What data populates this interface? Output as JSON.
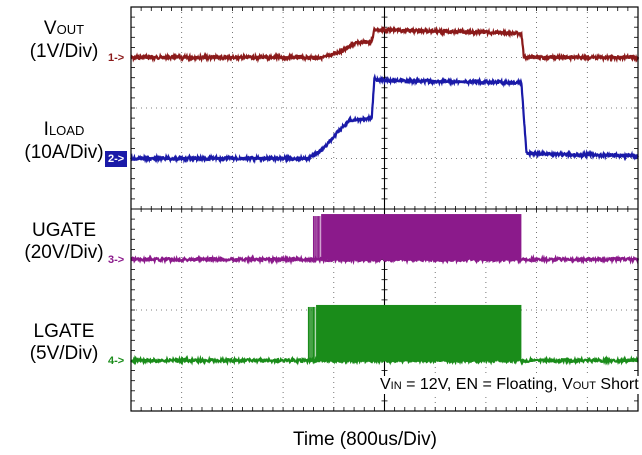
{
  "chart_data": {
    "type": "line",
    "title": "",
    "xlabel": "Time (800us/Div)",
    "x_divisions": 10,
    "y_divisions": 8,
    "grid": true,
    "annotation": {
      "parts": [
        {
          "text": "V",
          "style": "normal"
        },
        {
          "text": "IN",
          "style": "sub"
        },
        {
          "text": " = 12V, EN = Floating, V",
          "style": "normal"
        },
        {
          "text": "OUT",
          "style": "sub"
        },
        {
          "text": " Short",
          "style": "normal"
        }
      ]
    },
    "channels": [
      {
        "marker": "1->",
        "name_main": "V",
        "name_sub": "OUT",
        "scale": "(1V/Div)",
        "color": "#8b1a1a",
        "marker_boxed": false,
        "baseline_div": 7.0,
        "waveform": [
          {
            "t": 0.0,
            "level": 0.0
          },
          {
            "t": 3.8,
            "level": 0.0
          },
          {
            "t": 4.2,
            "level": 0.15
          },
          {
            "t": 4.4,
            "level": 0.28
          },
          {
            "t": 4.75,
            "level": 0.32
          },
          {
            "t": 4.8,
            "level": 0.55
          },
          {
            "t": 4.85,
            "level": 0.55
          },
          {
            "t": 7.7,
            "level": 0.48
          },
          {
            "t": 7.75,
            "level": 0.0
          },
          {
            "t": 10.0,
            "level": 0.0
          }
        ]
      },
      {
        "marker": "2->",
        "name_main": "I",
        "name_sub": "LOAD",
        "scale": "(10A/Div)",
        "color": "#1a1aa8",
        "marker_boxed": true,
        "baseline_div": 5.0,
        "waveform": [
          {
            "t": 0.0,
            "level": 0.0
          },
          {
            "t": 3.5,
            "level": 0.0
          },
          {
            "t": 3.8,
            "level": 0.2
          },
          {
            "t": 4.1,
            "level": 0.55
          },
          {
            "t": 4.3,
            "level": 0.75
          },
          {
            "t": 4.75,
            "level": 0.8
          },
          {
            "t": 4.8,
            "level": 1.6
          },
          {
            "t": 4.85,
            "level": 1.55
          },
          {
            "t": 7.7,
            "level": 1.5
          },
          {
            "t": 7.8,
            "level": 0.1
          },
          {
            "t": 10.0,
            "level": 0.05
          }
        ]
      },
      {
        "marker": "3->",
        "name_main": "UGATE",
        "name_sub": "",
        "scale": "(20V/Div)",
        "color": "#8b1a8b",
        "marker_boxed": false,
        "baseline_div": 3.0,
        "switching": {
          "start": 3.6,
          "end": 7.7,
          "amplitude": 0.9
        }
      },
      {
        "marker": "4->",
        "name_main": "LGATE",
        "name_sub": "",
        "scale": "(5V/Div)",
        "color": "#1a8c1a",
        "marker_boxed": false,
        "baseline_div": 1.0,
        "switching": {
          "start": 3.5,
          "end": 7.7,
          "amplitude": 1.1
        }
      }
    ]
  }
}
